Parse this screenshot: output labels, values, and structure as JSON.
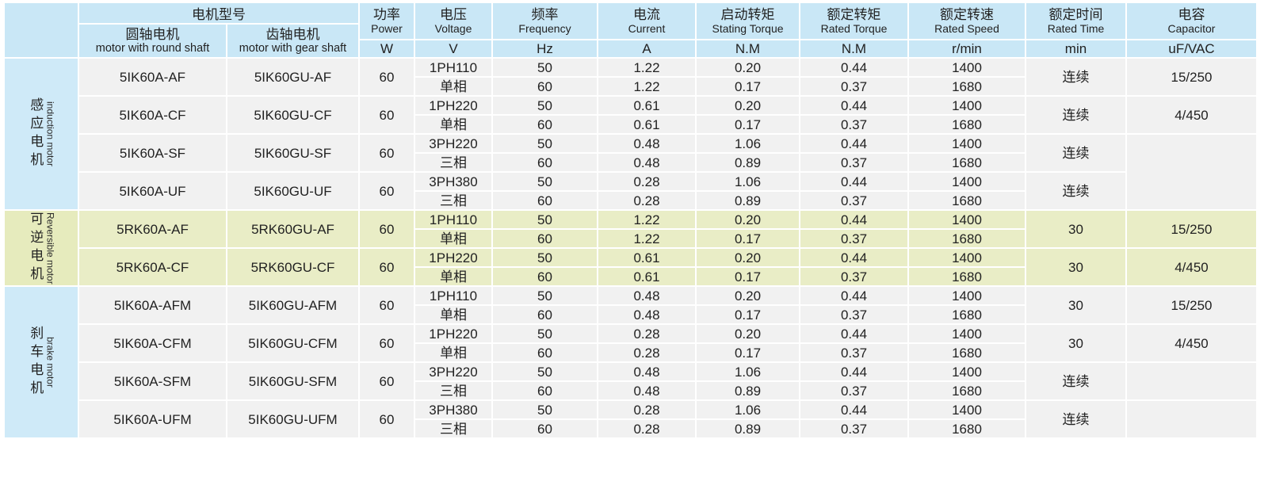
{
  "colors": {
    "header_blue": "#c9e7f6",
    "label_blue": "#cfeaf8",
    "row_gray": "#f1f1f1",
    "row_green": "#e9edc6",
    "border": "#ffffff"
  },
  "header": {
    "model_title": "电机型号",
    "round_shaft": {
      "cn": "圆轴电机",
      "en": "motor with round shaft"
    },
    "gear_shaft": {
      "cn": "齿轴电机",
      "en": "motor with gear shaft"
    },
    "columns": [
      {
        "cn": "功率",
        "en": "Power",
        "unit": "W"
      },
      {
        "cn": "电压",
        "en": "Voltage",
        "unit": "V"
      },
      {
        "cn": "频率",
        "en": "Frequency",
        "unit": "Hz"
      },
      {
        "cn": "电流",
        "en": "Current",
        "unit": "A"
      },
      {
        "cn": "启动转矩",
        "en": "Stating Torque",
        "unit": "N.M"
      },
      {
        "cn": "额定转矩",
        "en": "Rated Torque",
        "unit": "N.M"
      },
      {
        "cn": "额定转速",
        "en": "Rated Speed",
        "unit": "r/min"
      },
      {
        "cn": "额定时间",
        "en": "Rated Time",
        "unit": "min"
      },
      {
        "cn": "电容",
        "en": "Capacitor",
        "unit": "uF/VAC"
      }
    ]
  },
  "groups": [
    {
      "label_cn": "感应电机",
      "label_en": "induction motor",
      "theme": "blue",
      "models": [
        {
          "round": "5IK60A-AF",
          "gear": "5IK60GU-AF",
          "power": "60",
          "voltage": "1PH110",
          "phase": "单相",
          "time": "连续",
          "capacitor": "15/250",
          "capacitor_span": 2,
          "rows": [
            {
              "freq": "50",
              "current": "1.22",
              "starting_torque": "0.20",
              "rated_torque": "0.44",
              "speed": "1400"
            },
            {
              "freq": "60",
              "current": "1.22",
              "starting_torque": "0.17",
              "rated_torque": "0.37",
              "speed": "1680"
            }
          ]
        },
        {
          "round": "5IK60A-CF",
          "gear": "5IK60GU-CF",
          "power": "60",
          "voltage": "1PH220",
          "phase": "单相",
          "time": "连续",
          "capacitor": "4/450",
          "capacitor_span": 2,
          "rows": [
            {
              "freq": "50",
              "current": "0.61",
              "starting_torque": "0.20",
              "rated_torque": "0.44",
              "speed": "1400"
            },
            {
              "freq": "60",
              "current": "0.61",
              "starting_torque": "0.17",
              "rated_torque": "0.37",
              "speed": "1680"
            }
          ]
        },
        {
          "round": "5IK60A-SF",
          "gear": "5IK60GU-SF",
          "power": "60",
          "voltage": "3PH220",
          "phase": "三相",
          "time": "连续",
          "capacitor": "",
          "capacitor_span": 4,
          "rows": [
            {
              "freq": "50",
              "current": "0.48",
              "starting_torque": "1.06",
              "rated_torque": "0.44",
              "speed": "1400"
            },
            {
              "freq": "60",
              "current": "0.48",
              "starting_torque": "0.89",
              "rated_torque": "0.37",
              "speed": "1680"
            }
          ]
        },
        {
          "round": "5IK60A-UF",
          "gear": "5IK60GU-UF",
          "power": "60",
          "voltage": "3PH380",
          "phase": "三相",
          "time": "连续",
          "capacitor": "",
          "capacitor_span": 0,
          "rows": [
            {
              "freq": "50",
              "current": "0.28",
              "starting_torque": "1.06",
              "rated_torque": "0.44",
              "speed": "1400"
            },
            {
              "freq": "60",
              "current": "0.28",
              "starting_torque": "0.89",
              "rated_torque": "0.37",
              "speed": "1680"
            }
          ]
        }
      ]
    },
    {
      "label_cn": "可逆电机",
      "label_en": "Reversible motor",
      "theme": "green",
      "models": [
        {
          "round": "5RK60A-AF",
          "gear": "5RK60GU-AF",
          "power": "60",
          "voltage": "1PH110",
          "phase": "单相",
          "time": "30",
          "capacitor": "15/250",
          "capacitor_span": 2,
          "rows": [
            {
              "freq": "50",
              "current": "1.22",
              "starting_torque": "0.20",
              "rated_torque": "0.44",
              "speed": "1400"
            },
            {
              "freq": "60",
              "current": "1.22",
              "starting_torque": "0.17",
              "rated_torque": "0.37",
              "speed": "1680"
            }
          ]
        },
        {
          "round": "5RK60A-CF",
          "gear": "5RK60GU-CF",
          "power": "60",
          "voltage": "1PH220",
          "phase": "单相",
          "time": "30",
          "capacitor": "4/450",
          "capacitor_span": 2,
          "rows": [
            {
              "freq": "50",
              "current": "0.61",
              "starting_torque": "0.20",
              "rated_torque": "0.44",
              "speed": "1400"
            },
            {
              "freq": "60",
              "current": "0.61",
              "starting_torque": "0.17",
              "rated_torque": "0.37",
              "speed": "1680"
            }
          ]
        }
      ]
    },
    {
      "label_cn": "刹车电机",
      "label_en": "brake motor",
      "theme": "blue",
      "models": [
        {
          "round": "5IK60A-AFM",
          "gear": "5IK60GU-AFM",
          "power": "60",
          "voltage": "1PH110",
          "phase": "单相",
          "time": "30",
          "capacitor": "15/250",
          "capacitor_span": 2,
          "rows": [
            {
              "freq": "50",
              "current": "0.48",
              "starting_torque": "0.20",
              "rated_torque": "0.44",
              "speed": "1400"
            },
            {
              "freq": "60",
              "current": "0.48",
              "starting_torque": "0.17",
              "rated_torque": "0.37",
              "speed": "1680"
            }
          ]
        },
        {
          "round": "5IK60A-CFM",
          "gear": "5IK60GU-CFM",
          "power": "60",
          "voltage": "1PH220",
          "phase": "单相",
          "time": "30",
          "capacitor": "4/450",
          "capacitor_span": 2,
          "rows": [
            {
              "freq": "50",
              "current": "0.28",
              "starting_torque": "0.20",
              "rated_torque": "0.44",
              "speed": "1400"
            },
            {
              "freq": "60",
              "current": "0.28",
              "starting_torque": "0.17",
              "rated_torque": "0.37",
              "speed": "1680"
            }
          ]
        },
        {
          "round": "5IK60A-SFM",
          "gear": "5IK60GU-SFM",
          "power": "60",
          "voltage": "3PH220",
          "phase": "三相",
          "time": "连续",
          "capacitor": "",
          "capacitor_span": 2,
          "rows": [
            {
              "freq": "50",
              "current": "0.48",
              "starting_torque": "1.06",
              "rated_torque": "0.44",
              "speed": "1400"
            },
            {
              "freq": "60",
              "current": "0.48",
              "starting_torque": "0.89",
              "rated_torque": "0.37",
              "speed": "1680"
            }
          ]
        },
        {
          "round": "5IK60A-UFM",
          "gear": "5IK60GU-UFM",
          "power": "60",
          "voltage": "3PH380",
          "phase": "三相",
          "time": "连续",
          "capacitor": "",
          "capacitor_span": 2,
          "rows": [
            {
              "freq": "50",
              "current": "0.28",
              "starting_torque": "1.06",
              "rated_torque": "0.44",
              "speed": "1400"
            },
            {
              "freq": "60",
              "current": "0.28",
              "starting_torque": "0.89",
              "rated_torque": "0.37",
              "speed": "1680"
            }
          ]
        }
      ]
    }
  ]
}
